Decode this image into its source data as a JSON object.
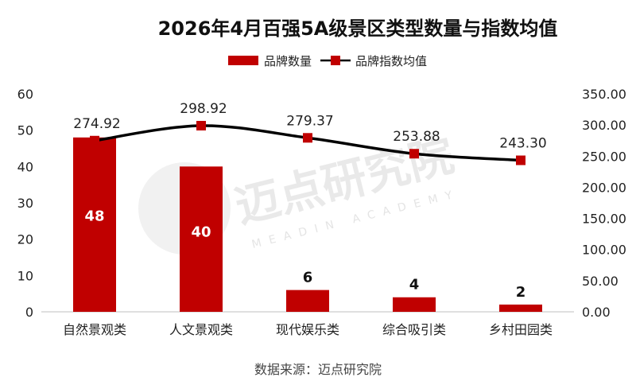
{
  "chart_data": {
    "type": "bar",
    "title": "2026年4月百强5A级景区类型数量与指数均值",
    "categories": [
      "自然景观类",
      "人文景观类",
      "现代娱乐类",
      "综合吸引类",
      "乡村田园类"
    ],
    "series": [
      {
        "name": "品牌数量",
        "type": "bar",
        "axis": "left",
        "values": [
          48,
          40,
          6,
          4,
          2
        ],
        "color": "#C00000"
      },
      {
        "name": "品牌指数均值",
        "type": "line",
        "axis": "right",
        "values": [
          274.92,
          298.92,
          279.37,
          253.88,
          243.3
        ],
        "color": "#C00000"
      }
    ],
    "bar_labels": [
      "48",
      "40",
      "6",
      "4",
      "2"
    ],
    "line_labels": [
      "274.92",
      "298.92",
      "279.37",
      "253.88",
      "243.30"
    ],
    "y_left": {
      "min": 0,
      "max": 60,
      "ticks": [
        "0",
        "10",
        "20",
        "30",
        "40",
        "50",
        "60"
      ]
    },
    "y_right": {
      "min": 0,
      "max": 350,
      "ticks": [
        "0.00",
        "50.00",
        "100.00",
        "150.00",
        "200.00",
        "250.00",
        "300.00",
        "350.00"
      ]
    },
    "legend_position": "top",
    "grid": false,
    "line_color": "#000000"
  },
  "source": "数据来源：迈点研究院",
  "watermark": {
    "text": "迈点研究院",
    "sub": "MEADIN ACADEMY"
  }
}
